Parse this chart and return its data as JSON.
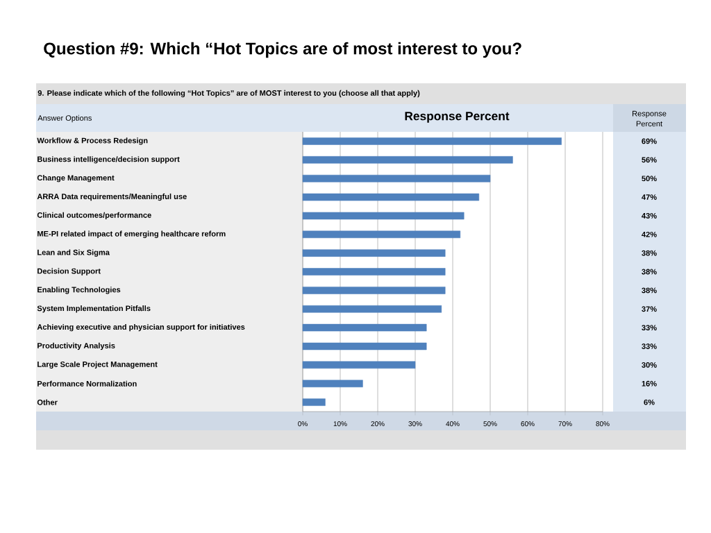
{
  "chart_data": {
    "type": "bar",
    "orientation": "horizontal",
    "title": "Question #9: Which “Hot Topics are of most interest to you?",
    "subtitle": "9. Please indicate which of the following “Hot Topics” are of MOST interest to you (choose all that apply)",
    "ylabel": "Answer Options",
    "annotations": [
      "Response Percent",
      "Response Percent"
    ],
    "categories": [
      "Workflow & Process Redesign",
      "Business intelligence/decision support",
      "Change Management",
      "ARRA Data requirements/Meaningful use",
      "Clinical outcomes/performance",
      "ME-PI related impact of emerging healthcare reform",
      "Lean and Six Sigma",
      "Decision Support",
      "Enabling Technologies",
      "System Implementation Pitfalls",
      "Achieving executive and physician support for initiatives",
      "Productivity Analysis",
      "Large Scale Project Management",
      "Performance Normalization",
      "Other"
    ],
    "values": [
      69,
      56,
      50,
      47,
      43,
      42,
      38,
      38,
      38,
      37,
      33,
      33,
      30,
      16,
      6
    ],
    "value_labels": [
      "69%",
      "56%",
      "50%",
      "47%",
      "43%",
      "42%",
      "38%",
      "38%",
      "38%",
      "37%",
      "33%",
      "33%",
      "30%",
      "16%",
      "6%"
    ],
    "color": "#4f81bd",
    "xlim": [
      0,
      80
    ],
    "xticks": [
      {
        "value": 0,
        "label": "0%"
      },
      {
        "value": 10,
        "label": "10%"
      },
      {
        "value": 20,
        "label": "20%"
      },
      {
        "value": 30,
        "label": "30%"
      },
      {
        "value": 40,
        "label": "40%"
      },
      {
        "value": 50,
        "label": "50%"
      },
      {
        "value": 60,
        "label": "60%"
      },
      {
        "value": 70,
        "label": "70%"
      },
      {
        "value": 80,
        "label": "80%"
      }
    ],
    "grid": "x"
  }
}
